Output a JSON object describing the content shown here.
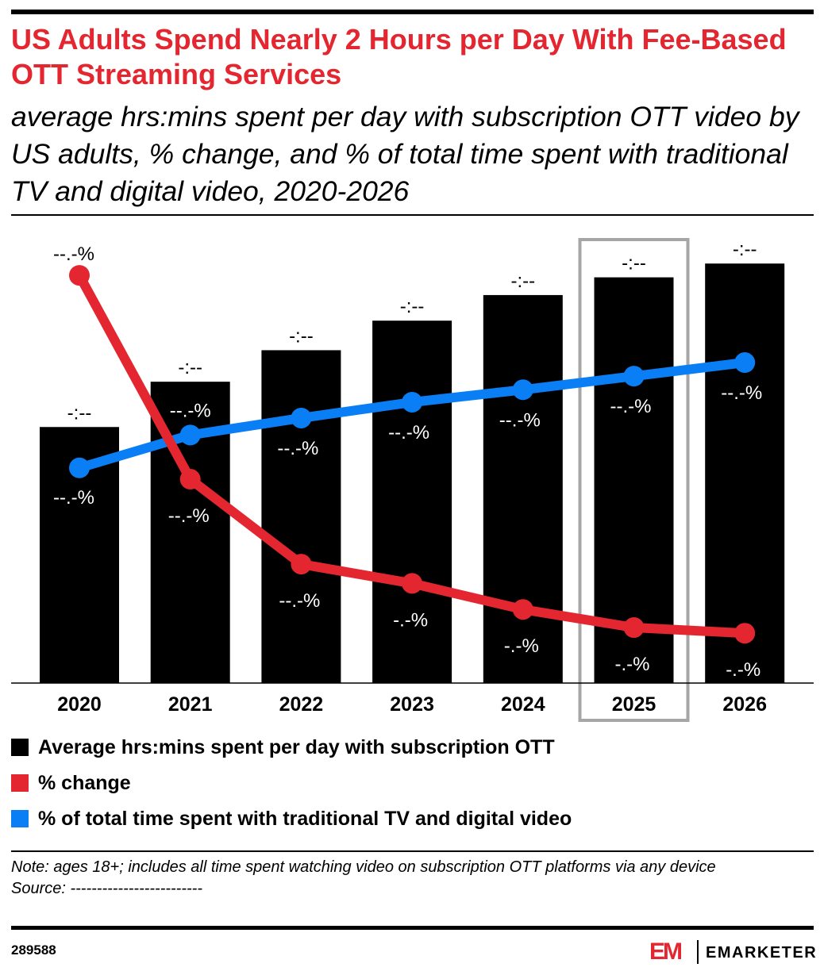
{
  "title": "US Adults Spend Nearly 2 Hours per Day With Fee-Based OTT Streaming Services",
  "subtitle": "average hrs:mins spent per day with subscription OTT video by US adults, % change, and % of total time spent with traditional TV and digital video, 2020-2026",
  "colors": {
    "title": "#e3262f",
    "bars": "#000000",
    "change_line": "#e3262f",
    "share_line": "#0a7ff5",
    "highlight_box": "#a6a6a6"
  },
  "chart_data": {
    "type": "bar",
    "categories": [
      "2020",
      "2021",
      "2022",
      "2023",
      "2024",
      "2025",
      "2026"
    ],
    "highlighted_category": "2025",
    "series": [
      {
        "name": "Average hrs:mins spent per day with subscription OTT",
        "type": "bar",
        "values": [
          1.3,
          1.53,
          1.69,
          1.84,
          1.97,
          2.06,
          2.13
        ],
        "labels": [
          "-:--",
          "-:--",
          "-:--",
          "-:--",
          "-:--",
          "-:--",
          "-:--"
        ]
      },
      {
        "name": "% change",
        "type": "line",
        "values": [
          36,
          18,
          10.5,
          8.8,
          6.5,
          4.9,
          4.4
        ],
        "labels": [
          "--.-%",
          "--.-%",
          "--.-%",
          "-.-%",
          "-.-%",
          "-.-%",
          "-.-%"
        ]
      },
      {
        "name": "% of total time spent with traditional TV and digital video",
        "type": "line",
        "values": [
          19,
          21.9,
          23.4,
          24.8,
          25.9,
          27.1,
          28.3
        ],
        "labels": [
          "--.-%",
          "--.-%",
          "--.-%",
          "--.-%",
          "--.-%",
          "--.-%",
          "--.-%"
        ]
      }
    ],
    "xlabel": "",
    "ylabel": "",
    "ylim": [
      0,
      2.3
    ],
    "line_ylim": [
      0,
      40
    ],
    "grid": false,
    "legend_position": "bottom"
  },
  "legend": [
    {
      "label": "Average hrs:mins spent per day with subscription OTT",
      "color": "#000000"
    },
    {
      "label": "% change",
      "color": "#e3262f"
    },
    {
      "label": "% of total time spent with traditional TV and digital video",
      "color": "#0a7ff5"
    }
  ],
  "note_line": "Note: ages 18+; includes all time spent watching video on subscription OTT platforms via any device",
  "source_line": "Source: -------------------------",
  "chart_id": "289588",
  "brand": {
    "mark": "EM",
    "wordmark": "EMARKETER"
  }
}
